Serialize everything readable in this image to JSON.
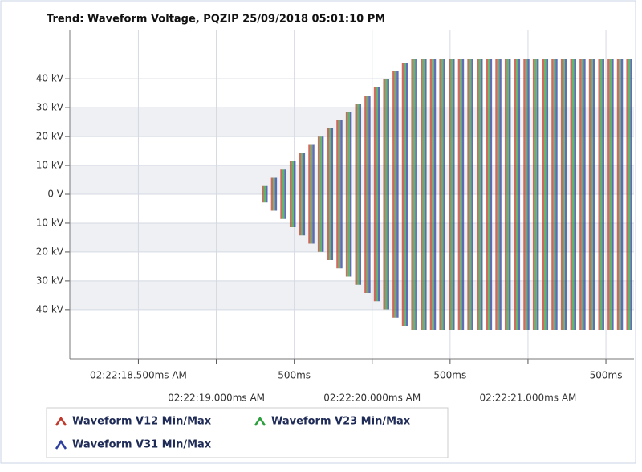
{
  "chart_data": {
    "type": "minmax",
    "title": "Trend: Waveform Voltage, PQZIP 25/09/2018 05:01:10 PM",
    "x": [
      19.25,
      19.31,
      19.37,
      19.43,
      19.49,
      19.55,
      19.61,
      19.67,
      19.73,
      19.79,
      19.85,
      19.91,
      19.97,
      20.03,
      20.09,
      20.15,
      20.21,
      20.27,
      20.33,
      20.39,
      20.45,
      20.51,
      20.57,
      20.63,
      20.69,
      20.75,
      20.81,
      20.87,
      20.93,
      20.99,
      21.05,
      21.11,
      21.17,
      21.23,
      21.29,
      21.35,
      21.41,
      21.47,
      21.53,
      21.59,
      21.65
    ],
    "series": [
      {
        "name": "Waveform V12 Min/Max",
        "color": "#c0392b",
        "max": [
          0,
          2850,
          5700,
          8550,
          11400,
          14250,
          17100,
          19950,
          22800,
          25650,
          28500,
          31350,
          34200,
          37050,
          39900,
          42750,
          45600,
          47000,
          47000,
          47000,
          47000,
          47000,
          47000,
          47000,
          47000,
          47000,
          47000,
          47000,
          47000,
          47000,
          47000,
          47000,
          47000,
          47000,
          47000,
          47000,
          47000,
          47000,
          47000,
          47000,
          47000
        ],
        "min": [
          0,
          -2850,
          -5700,
          -8550,
          -11400,
          -14250,
          -17100,
          -19950,
          -22800,
          -25650,
          -28500,
          -31350,
          -34200,
          -37050,
          -39900,
          -42750,
          -45600,
          -47000,
          -47000,
          -47000,
          -47000,
          -47000,
          -47000,
          -47000,
          -47000,
          -47000,
          -47000,
          -47000,
          -47000,
          -47000,
          -47000,
          -47000,
          -47000,
          -47000,
          -47000,
          -47000,
          -47000,
          -47000,
          -47000,
          -47000,
          -47000
        ]
      },
      {
        "name": "Waveform V23 Min/Max",
        "color": "#2e9e3e",
        "max": [
          0,
          2850,
          5700,
          8550,
          11400,
          14250,
          17100,
          19950,
          22800,
          25650,
          28500,
          31350,
          34200,
          37050,
          39900,
          42750,
          45600,
          47000,
          47000,
          47000,
          47000,
          47000,
          47000,
          47000,
          47000,
          47000,
          47000,
          47000,
          47000,
          47000,
          47000,
          47000,
          47000,
          47000,
          47000,
          47000,
          47000,
          47000,
          47000,
          47000,
          47000
        ],
        "min": [
          0,
          -2850,
          -5700,
          -8550,
          -11400,
          -14250,
          -17100,
          -19950,
          -22800,
          -25650,
          -28500,
          -31350,
          -34200,
          -37050,
          -39900,
          -42750,
          -45600,
          -47000,
          -47000,
          -47000,
          -47000,
          -47000,
          -47000,
          -47000,
          -47000,
          -47000,
          -47000,
          -47000,
          -47000,
          -47000,
          -47000,
          -47000,
          -47000,
          -47000,
          -47000,
          -47000,
          -47000,
          -47000,
          -47000,
          -47000,
          -47000
        ]
      },
      {
        "name": "Waveform V31 Min/Max",
        "color": "#2c3e9e",
        "max": [
          0,
          2850,
          5700,
          8550,
          11400,
          14250,
          17100,
          19950,
          22800,
          25650,
          28500,
          31350,
          34200,
          37050,
          39900,
          42750,
          45600,
          47000,
          47000,
          47000,
          47000,
          47000,
          47000,
          47000,
          47000,
          47000,
          47000,
          47000,
          47000,
          47000,
          47000,
          47000,
          47000,
          47000,
          47000,
          47000,
          47000,
          47000,
          47000,
          47000,
          47000
        ],
        "min": [
          0,
          -2850,
          -5700,
          -8550,
          -11400,
          -14250,
          -17100,
          -19950,
          -22800,
          -25650,
          -28500,
          -31350,
          -34200,
          -37050,
          -39900,
          -42750,
          -45600,
          -47000,
          -47000,
          -47000,
          -47000,
          -47000,
          -47000,
          -47000,
          -47000,
          -47000,
          -47000,
          -47000,
          -47000,
          -47000,
          -47000,
          -47000,
          -47000,
          -47000,
          -47000,
          -47000,
          -47000,
          -47000,
          -47000,
          -47000,
          -47000
        ]
      }
    ],
    "xlim": [
      18.06,
      21.68
    ],
    "xticks": [
      {
        "value": 18.5,
        "label": "02:22:18.500ms AM"
      },
      {
        "value": 19.0,
        "label": "02:22:19.000ms AM"
      },
      {
        "value": 19.5,
        "label": "500ms"
      },
      {
        "value": 20.0,
        "label": "02:22:20.000ms AM"
      },
      {
        "value": 20.5,
        "label": "500ms"
      },
      {
        "value": 21.0,
        "label": "02:22:21.000ms AM"
      },
      {
        "value": 21.5,
        "label": "500ms"
      }
    ],
    "ylim": [
      -57000,
      57000
    ],
    "yticks": [
      {
        "value": 40000,
        "label": "40 kV"
      },
      {
        "value": 30000,
        "label": "30 kV"
      },
      {
        "value": 20000,
        "label": "20 kV"
      },
      {
        "value": 10000,
        "label": "10 kV"
      },
      {
        "value": 0,
        "label": "0 V"
      },
      {
        "value": -10000,
        "label": "10 kV"
      },
      {
        "value": -20000,
        "label": "20 kV"
      },
      {
        "value": -30000,
        "label": "30 kV"
      },
      {
        "value": -40000,
        "label": "40 kV"
      }
    ],
    "grid": true
  }
}
